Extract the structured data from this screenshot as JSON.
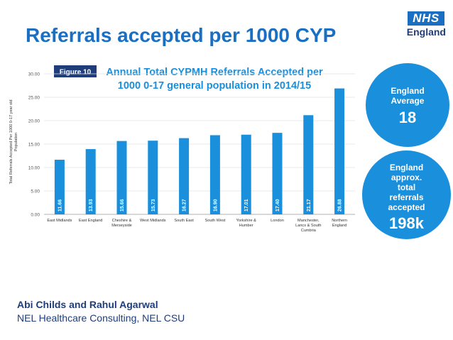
{
  "slide": {
    "title": "Referrals accepted per 1000 CYP",
    "logo": {
      "box": "NHS",
      "sub": "England"
    },
    "authors": "Abi Childs and Rahul Agarwal",
    "organisation": "NEL Healthcare Consulting, NEL CSU"
  },
  "bubbles": {
    "average": {
      "label_1": "England",
      "label_2": "Average",
      "value": "18"
    },
    "total": {
      "label_1": "England",
      "label_2": "approx.",
      "label_3": "total",
      "label_4": "referrals",
      "label_5": "accepted",
      "value": "198k"
    }
  },
  "chart_data": {
    "type": "bar",
    "figure_label": "Figure 10",
    "title_line1": "Annual Total CYPMH Referrals Accepted per",
    "title_line2": "1000 0-17 general population in 2014/15",
    "ylabel_line1": "Total Referrals Accepted Per 1000 0-17 year old",
    "ylabel_line2": "Population",
    "ylim": [
      0,
      30
    ],
    "yticks": [
      "0.00",
      "5.00",
      "10.00",
      "15.00",
      "20.00",
      "25.00",
      "30.00"
    ],
    "categories": [
      [
        "East Midlands"
      ],
      [
        "East England"
      ],
      [
        "Cheshire &",
        "Merseyside"
      ],
      [
        "West Midlands"
      ],
      [
        "South East"
      ],
      [
        "South West"
      ],
      [
        "Yorkshire &",
        "Humber"
      ],
      [
        "London"
      ],
      [
        "Manchester,",
        "Lancs & South",
        "Cumbria"
      ],
      [
        "Northern",
        "England"
      ]
    ],
    "values": [
      11.66,
      13.93,
      15.66,
      15.73,
      16.27,
      16.9,
      17.01,
      17.4,
      21.17,
      26.88
    ],
    "value_labels": [
      "11.66",
      "13.93",
      "15.66",
      "15.73",
      "16.27",
      "16.90",
      "17.01",
      "17.40",
      "21.17",
      "26.88"
    ],
    "bar_color": "#1a8fdc",
    "grid": true
  }
}
